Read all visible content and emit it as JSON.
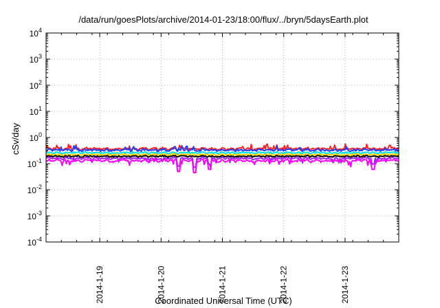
{
  "chart_data": {
    "type": "line",
    "title": "/data/run/goesPlots/archive/2014-01-23/18:00/flux/../bryn/5daysEarth.plot",
    "xlabel": "Coordinated Universal Time (UTC)",
    "ylabel": "cSv/day",
    "y_scale": "log",
    "ylim": [
      0.0001,
      10000
    ],
    "y_ticks": [
      {
        "value": 0.0001,
        "base": "10",
        "exp": "-4"
      },
      {
        "value": 0.001,
        "base": "10",
        "exp": "-3"
      },
      {
        "value": 0.01,
        "base": "10",
        "exp": "-2"
      },
      {
        "value": 0.1,
        "base": "10",
        "exp": "-1"
      },
      {
        "value": 1,
        "base": "10",
        "exp": "0"
      },
      {
        "value": 10,
        "base": "10",
        "exp": "1"
      },
      {
        "value": 100,
        "base": "10",
        "exp": "2"
      },
      {
        "value": 1000,
        "base": "10",
        "exp": "3"
      },
      {
        "value": 10000,
        "base": "10",
        "exp": "4"
      }
    ],
    "x_range": [
      "2014-01-18T03:00",
      "2014-01-23T21:00"
    ],
    "x_ticks": [
      {
        "value": "2014-01-19T00:00",
        "label": "2014-1-19"
      },
      {
        "value": "2014-01-20T00:00",
        "label": "2014-1-20"
      },
      {
        "value": "2014-01-21T00:00",
        "label": "2014-1-21"
      },
      {
        "value": "2014-01-22T00:00",
        "label": "2014-1-22"
      },
      {
        "value": "2014-01-23T00:00",
        "label": "2014-1-23"
      }
    ],
    "grid": true,
    "legend": "none",
    "series": [
      {
        "color": "#ff2020",
        "level": 0.37,
        "spread": 0.16
      },
      {
        "color": "#2040ff",
        "level": 0.33,
        "spread": 0.16
      },
      {
        "color": "#00e0e0",
        "level": 0.26,
        "spread": 0.12
      },
      {
        "color": "#ffd000",
        "level": 0.22,
        "spread": 0.1
      },
      {
        "color": "#000000",
        "level": 0.19,
        "spread": 0.1
      },
      {
        "color": "#a020f0",
        "level": 0.16,
        "spread": 0.12
      },
      {
        "color": "#ff00ff",
        "level": 0.13,
        "spread": 0.18
      }
    ],
    "notable_dips": [
      {
        "x": "2014-01-20T07:00",
        "y": 0.05
      },
      {
        "x": "2014-01-20T13:00",
        "y": 0.045
      },
      {
        "x": "2014-01-20T19:00",
        "y": 0.06
      },
      {
        "x": "2014-01-23T11:00",
        "y": 0.06
      }
    ]
  }
}
